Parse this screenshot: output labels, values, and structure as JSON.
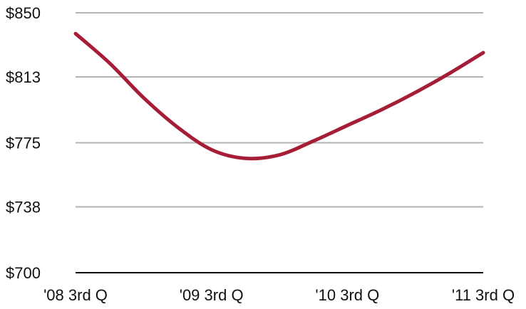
{
  "chart_data": {
    "type": "line",
    "title": "",
    "xlabel": "",
    "ylabel": "",
    "categories": [
      "'08 3rd Q",
      "",
      "",
      "",
      "'09 3rd Q",
      "",
      "",
      "",
      "'10 3rd Q",
      "",
      "",
      "",
      "'11 3rd Q"
    ],
    "x_tick_labels": [
      "'08 3rd Q",
      "'09 3rd Q",
      "'10 3rd Q",
      "'11 3rd Q"
    ],
    "y_tick_labels": [
      "$850",
      "$813",
      "$775",
      "$738",
      "$700"
    ],
    "y_ticks": [
      850,
      813,
      775,
      738,
      700
    ],
    "ylim": [
      700,
      850
    ],
    "grid": true,
    "legend": "none",
    "series": [
      {
        "values": [
          838,
          821,
          801,
          784,
          771,
          766,
          768,
          776,
          785,
          794,
          804,
          815,
          827
        ],
        "color": "#a61d37"
      }
    ],
    "colors": {
      "line": "#a61d37",
      "grid": "#b3b3b3",
      "axis": "#000000",
      "text": "#111111"
    }
  }
}
